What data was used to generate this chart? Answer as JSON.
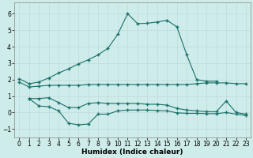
{
  "xlabel": "Humidex (Indice chaleur)",
  "xlim": [
    -0.5,
    23.5
  ],
  "ylim": [
    -1.5,
    6.7
  ],
  "yticks": [
    -1,
    0,
    1,
    2,
    3,
    4,
    5,
    6
  ],
  "xticks": [
    0,
    1,
    2,
    3,
    4,
    5,
    6,
    7,
    8,
    9,
    10,
    11,
    12,
    13,
    14,
    15,
    16,
    17,
    18,
    19,
    20,
    21,
    22,
    23
  ],
  "bg_color": "#ceecea",
  "grid_color_major": "#b8dbd9",
  "grid_color_minor": "#d4ecea",
  "line_color": "#1a706a",
  "curve1": {
    "x": [
      0,
      1,
      2,
      3,
      4,
      5,
      6,
      7,
      8,
      9,
      10,
      11,
      12,
      13,
      14,
      15,
      16,
      17,
      18,
      19,
      20
    ],
    "y": [
      2.05,
      1.75,
      1.85,
      2.1,
      2.4,
      2.65,
      2.95,
      3.2,
      3.5,
      3.9,
      4.75,
      6.0,
      5.4,
      5.42,
      5.5,
      5.6,
      5.2,
      3.5,
      2.0,
      1.9,
      1.9
    ]
  },
  "curve2": {
    "x": [
      0,
      1,
      2,
      3,
      4,
      5,
      6,
      7,
      8,
      9,
      10,
      11,
      12,
      13,
      14,
      15,
      16,
      17,
      18,
      19,
      20,
      21,
      22,
      23
    ],
    "y": [
      1.85,
      1.55,
      1.6,
      1.65,
      1.65,
      1.65,
      1.65,
      1.7,
      1.7,
      1.7,
      1.7,
      1.7,
      1.7,
      1.7,
      1.7,
      1.7,
      1.7,
      1.7,
      1.75,
      1.8,
      1.8,
      1.8,
      1.75,
      1.75
    ]
  },
  "curve3": {
    "x": [
      1,
      2,
      3,
      4,
      5,
      6,
      7,
      8,
      9,
      10,
      11,
      12,
      13,
      14,
      15,
      16,
      17,
      18,
      19,
      20,
      21,
      22,
      23
    ],
    "y": [
      0.85,
      0.85,
      0.9,
      0.6,
      0.3,
      0.3,
      0.55,
      0.6,
      0.55,
      0.55,
      0.55,
      0.55,
      0.5,
      0.5,
      0.45,
      0.25,
      0.15,
      0.1,
      0.05,
      0.05,
      0.7,
      0.0,
      -0.1
    ]
  },
  "curve4": {
    "x": [
      1,
      2,
      3,
      4,
      5,
      6,
      7,
      8,
      9,
      10,
      11,
      12,
      13,
      14,
      15,
      16,
      17,
      18,
      19,
      20,
      21,
      22,
      23
    ],
    "y": [
      0.85,
      0.4,
      0.35,
      0.1,
      -0.65,
      -0.75,
      -0.7,
      -0.1,
      -0.1,
      0.1,
      0.15,
      0.15,
      0.15,
      0.12,
      0.1,
      -0.02,
      -0.05,
      -0.05,
      -0.07,
      -0.07,
      0.0,
      -0.1,
      -0.18
    ]
  }
}
